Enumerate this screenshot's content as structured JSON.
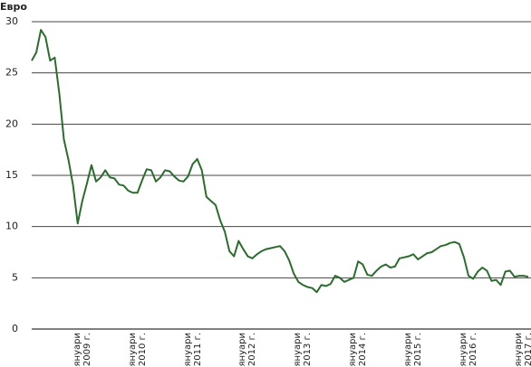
{
  "chart_data": {
    "type": "line",
    "y_label": "Евро",
    "categories": [
      null,
      null,
      null,
      null,
      null,
      null,
      null,
      null,
      null,
      null,
      null,
      "януари 2009 г.",
      null,
      null,
      null,
      null,
      null,
      null,
      null,
      null,
      null,
      null,
      null,
      "януари 2010 г.",
      null,
      null,
      null,
      null,
      null,
      null,
      null,
      null,
      null,
      null,
      null,
      "януари 2011 г.",
      null,
      null,
      null,
      null,
      null,
      null,
      null,
      null,
      null,
      null,
      null,
      "януари 2012 г.",
      null,
      null,
      null,
      null,
      null,
      null,
      null,
      null,
      null,
      null,
      null,
      "януари 2013 г.",
      null,
      null,
      null,
      null,
      null,
      null,
      null,
      null,
      null,
      null,
      null,
      "януари 2014 г.",
      null,
      null,
      null,
      null,
      null,
      null,
      null,
      null,
      null,
      null,
      null,
      "януари 2015 г.",
      null,
      null,
      null,
      null,
      null,
      null,
      null,
      null,
      null,
      null,
      null,
      "януари 2016 г.",
      null,
      null,
      null,
      null,
      null,
      null,
      null,
      null,
      null,
      null,
      null,
      "януари 2017 г.",
      null
    ],
    "values": [
      26.2,
      27,
      29.2,
      28.5,
      26.2,
      26.5,
      23,
      18.5,
      16.5,
      14,
      10.3,
      12.5,
      14.2,
      16,
      14.4,
      14.8,
      15.5,
      14.8,
      14.7,
      14.1,
      14,
      13.5,
      13.3,
      13.3,
      14.5,
      15.6,
      15.5,
      14.4,
      14.8,
      15.5,
      15.4,
      14.9,
      14.5,
      14.4,
      14.9,
      16.1,
      16.6,
      15.5,
      12.9,
      12.5,
      12.1,
      10.6,
      9.5,
      7.6,
      7.1,
      8.6,
      7.8,
      7.1,
      6.9,
      7.3,
      7.6,
      7.8,
      7.9,
      8,
      8.1,
      7.6,
      6.7,
      5.4,
      4.6,
      4.3,
      4.1,
      4,
      3.6,
      4.3,
      4.2,
      4.4,
      5.2,
      5,
      4.6,
      4.8,
      5,
      6.6,
      6.3,
      5.3,
      5.2,
      5.7,
      6.1,
      6.3,
      6,
      6.1,
      6.9,
      7,
      7.1,
      7.3,
      6.8,
      7.1,
      7.4,
      7.5,
      7.8,
      8.1,
      8.2,
      8.4,
      8.5,
      8.3,
      7,
      5.2,
      4.9,
      5.6,
      6,
      5.7,
      4.7,
      4.8,
      4.3,
      5.6,
      5.7,
      5.1,
      5.2,
      5.2,
      5.1
    ],
    "color": "#2e6b30",
    "ylim": [
      0,
      30
    ],
    "yticks": [
      0,
      5,
      10,
      15,
      20,
      25,
      30
    ],
    "grid": true
  }
}
